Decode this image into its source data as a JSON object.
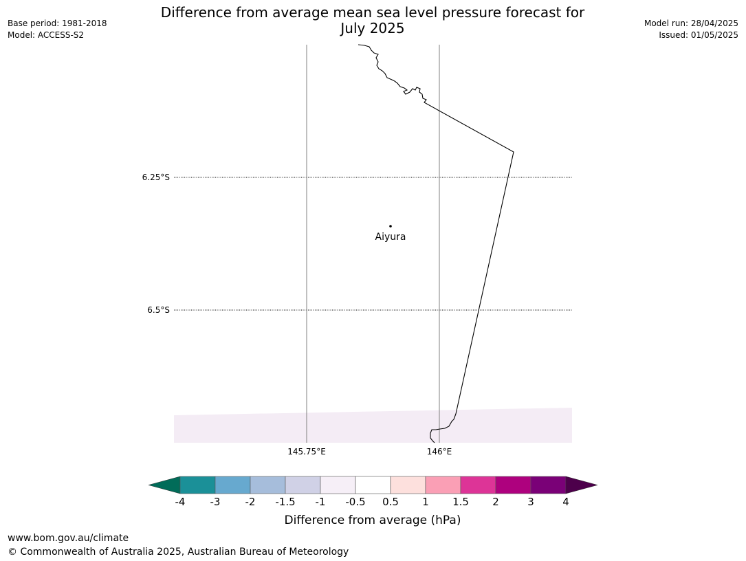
{
  "header": {
    "base_period": "Base period: 1981-2018",
    "model": "Model: ACCESS-S2",
    "model_run": "Model run: 28/04/2025",
    "issued": "Issued: 01/05/2025",
    "title_line1": "Difference from average mean sea level pressure forecast for",
    "title_line2": "July 2025"
  },
  "map": {
    "lon_labels": [
      "145.75°E",
      "146°E"
    ],
    "lat_labels": [
      "6.25°S",
      "6.5°S"
    ],
    "place": {
      "name": "Aiyura"
    },
    "field_color": "#f4ecf5"
  },
  "legend": {
    "title": "Difference from average (hPa)",
    "ticks": [
      "-4",
      "-3",
      "-2",
      "-1.5",
      "-1",
      "-0.5",
      "0.5",
      "1",
      "1.5",
      "2",
      "3",
      "4"
    ],
    "under_color": "#016c59",
    "over_color": "#4d004b",
    "colors": [
      "#1b9098",
      "#67a9cf",
      "#a6bddb",
      "#d0d1e6",
      "#f6eff7",
      "#ffffff",
      "#fde0dd",
      "#fa9fb5",
      "#dd3497",
      "#ae017e",
      "#7a0177"
    ]
  },
  "footer": {
    "url": "www.bom.gov.au/climate",
    "copyright": "© Commonwealth of Australia 2025, Australian Bureau of Meteorology"
  }
}
